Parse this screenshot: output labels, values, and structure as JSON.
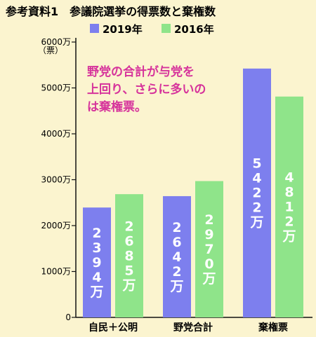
{
  "chart_data": {
    "type": "bar",
    "title": "参考資料1　参議院選挙の得票数と棄権数",
    "ylabel": "（票）",
    "categories": [
      "自民＋公明",
      "野党合計",
      "棄権票"
    ],
    "series": [
      {
        "name": "2019年",
        "values": [
          2394,
          2642,
          5422
        ],
        "labels": [
          "2394万",
          "2642万",
          "5422万"
        ],
        "color": "#7d7fee"
      },
      {
        "name": "2016年",
        "values": [
          2685,
          2970,
          4812
        ],
        "labels": [
          "2685万",
          "2970万",
          "4812万"
        ],
        "color": "#8fe48a"
      }
    ],
    "yticks": [
      {
        "value": 0,
        "label": "0"
      },
      {
        "value": 1000,
        "label": "1000万"
      },
      {
        "value": 2000,
        "label": "2000万"
      },
      {
        "value": 3000,
        "label": "3000万"
      },
      {
        "value": 4000,
        "label": "4000万"
      },
      {
        "value": 5000,
        "label": "5000万"
      },
      {
        "value": 6000,
        "label": "6000万"
      }
    ],
    "ylim": [
      0,
      6000
    ],
    "grid": false,
    "legend": "top",
    "annotation": [
      "野党の合計が与党を",
      "上回り、さらに多いの",
      "は棄権票。"
    ],
    "annotation_color": "#d6339b"
  }
}
